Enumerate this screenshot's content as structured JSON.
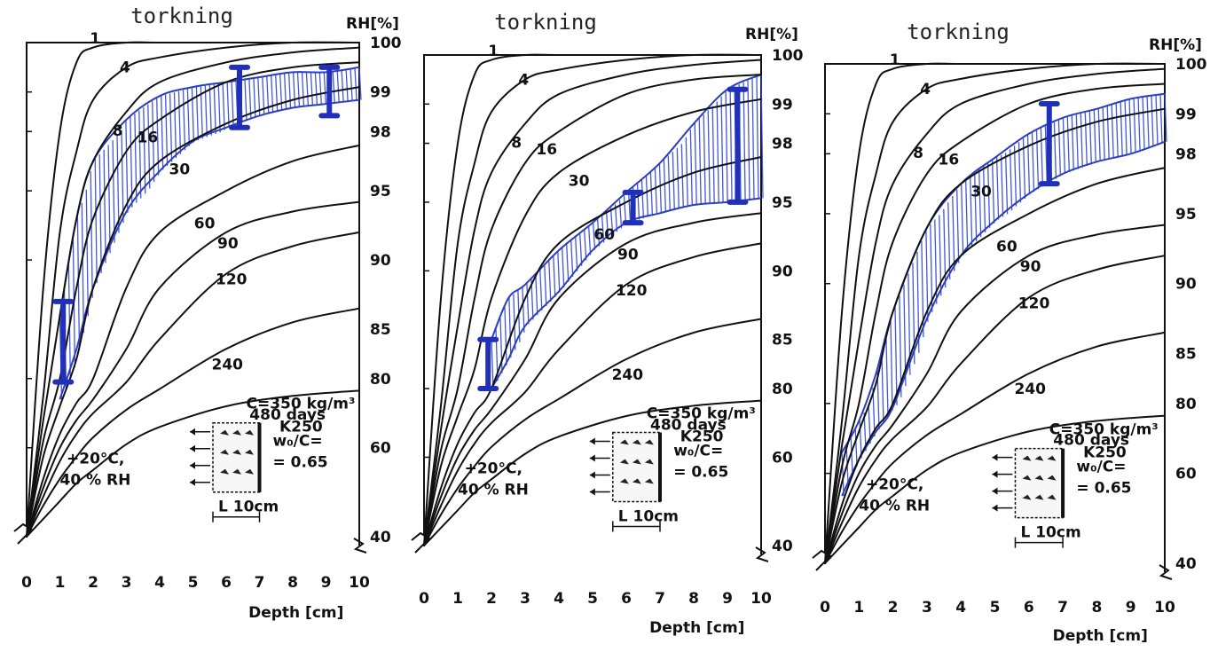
{
  "chart_data": [
    {
      "type": "line",
      "title": "torkning",
      "xlabel": "Depth [cm]",
      "ylabel": "RH[%]",
      "x_ticks": [
        "0",
        "1",
        "2",
        "3",
        "4",
        "5",
        "6",
        "7",
        "8",
        "9",
        "10"
      ],
      "y_ticks": [
        "100",
        "99",
        "98",
        "95",
        "90",
        "85",
        "80",
        "60",
        "40"
      ],
      "xlim": [
        0,
        10
      ],
      "series": [
        {
          "label": "1",
          "x": [
            0,
            0.5,
            1,
            1.5,
            2,
            3,
            4,
            6,
            8,
            10
          ],
          "y": [
            40,
            88,
            98,
            99.6,
            99.9,
            100,
            100,
            100,
            100,
            100
          ]
        },
        {
          "label": "4",
          "x": [
            0,
            0.5,
            1,
            1.5,
            2,
            3,
            4,
            6,
            8,
            10
          ],
          "y": [
            40,
            75,
            92,
            97,
            98.8,
            99.5,
            99.7,
            99.9,
            100,
            100
          ]
        },
        {
          "label": "8",
          "x": [
            0,
            0.5,
            1,
            1.5,
            2,
            3,
            4,
            6,
            8,
            10
          ],
          "y": [
            40,
            68,
            86,
            93,
            96.5,
            98.5,
            99.2,
            99.6,
            99.8,
            99.9
          ]
        },
        {
          "label": "16",
          "x": [
            0,
            0.5,
            1,
            1.5,
            2,
            3,
            4,
            6,
            8,
            10
          ],
          "y": [
            40,
            62,
            80,
            88,
            93,
            97,
            98.3,
            99.2,
            99.5,
            99.6
          ]
        },
        {
          "label": "30",
          "x": [
            0,
            0.5,
            1,
            1.5,
            2,
            3,
            4,
            6,
            8,
            10
          ],
          "y": [
            40,
            58,
            72,
            82,
            88,
            94,
            96.5,
            98.2,
            98.8,
            99.1
          ]
        },
        {
          "label": "60",
          "x": [
            0,
            0.5,
            1,
            1.5,
            2,
            3,
            4,
            6,
            8,
            10
          ],
          "y": [
            40,
            53,
            64,
            73,
            80,
            88,
            92,
            95,
            96.5,
            97.3
          ]
        },
        {
          "label": "90",
          "x": [
            0,
            0.5,
            1,
            1.5,
            2,
            3,
            4,
            6,
            8,
            10
          ],
          "y": [
            40,
            51,
            60,
            68,
            74,
            83,
            88,
            92,
            93.5,
            94.2
          ]
        },
        {
          "label": "120",
          "x": [
            0,
            0.5,
            1,
            1.5,
            2,
            3,
            4,
            6,
            8,
            10
          ],
          "y": [
            40,
            49,
            57,
            64,
            70,
            79,
            84,
            89,
            91,
            92
          ]
        },
        {
          "label": "240",
          "x": [
            0,
            0.5,
            1,
            1.5,
            2,
            3,
            4,
            6,
            8,
            10
          ],
          "y": [
            40,
            47,
            53,
            58,
            63,
            71,
            77,
            83,
            85.5,
            86.5
          ]
        },
        {
          "label": "480 days",
          "x": [
            0,
            0.5,
            1,
            1.5,
            2,
            3,
            4,
            6,
            8,
            10
          ],
          "y": [
            40,
            44,
            48,
            52,
            55,
            61,
            66,
            72,
            75,
            76.5
          ]
        }
      ],
      "measured_band": {
        "x": [
          1,
          1.5,
          2,
          3,
          4,
          5,
          6,
          7,
          8,
          9,
          10
        ],
        "y_low": [
          74,
          83,
          88,
          93.5,
          96,
          97.5,
          98.1,
          98.4,
          98.6,
          98.7,
          98.8
        ],
        "y_high": [
          86,
          93,
          96.5,
          98.3,
          98.9,
          99.1,
          99.2,
          99.3,
          99.4,
          99.4,
          99.5
        ]
      },
      "error_bars": [
        {
          "x": 1.1,
          "y_low": 79,
          "y_high": 87
        },
        {
          "x": 6.4,
          "y_low": 98.1,
          "y_high": 99.5
        },
        {
          "x": 9.1,
          "y_low": 98.4,
          "y_high": 99.5
        }
      ],
      "annotations": [
        "C=350 kg/m³",
        "K250",
        "w₀/C=",
        "= 0.65",
        "+20°C,",
        "40 % RH",
        "L 10cm"
      ]
    },
    {
      "type": "line",
      "title": "torkning",
      "xlabel": "Depth [cm]",
      "ylabel": "RH[%]",
      "x_ticks": [
        "0",
        "1",
        "2",
        "3",
        "4",
        "5",
        "6",
        "7",
        "8",
        "9",
        "10"
      ],
      "y_ticks": [
        "100",
        "99",
        "98",
        "95",
        "90",
        "85",
        "80",
        "60",
        "40"
      ],
      "xlim": [
        0,
        10
      ],
      "series": [
        {
          "label": "1",
          "x": [
            0,
            0.5,
            1,
            1.5,
            2,
            3,
            4,
            6,
            8,
            10
          ],
          "y": [
            40,
            88,
            98,
            99.6,
            99.9,
            100,
            100,
            100,
            100,
            100
          ]
        },
        {
          "label": "4",
          "x": [
            0,
            0.5,
            1,
            1.5,
            2,
            3,
            4,
            6,
            8,
            10
          ],
          "y": [
            40,
            75,
            92,
            97,
            98.8,
            99.5,
            99.7,
            99.9,
            100,
            100
          ]
        },
        {
          "label": "8",
          "x": [
            0,
            0.5,
            1,
            1.5,
            2,
            3,
            4,
            6,
            8,
            10
          ],
          "y": [
            40,
            68,
            86,
            93,
            96.5,
            98.5,
            99.2,
            99.6,
            99.8,
            99.9
          ]
        },
        {
          "label": "16",
          "x": [
            0,
            0.5,
            1,
            1.5,
            2,
            3,
            4,
            6,
            8,
            10
          ],
          "y": [
            40,
            62,
            80,
            88,
            93,
            97,
            98.3,
            99.2,
            99.5,
            99.6
          ]
        },
        {
          "label": "30",
          "x": [
            0,
            0.5,
            1,
            1.5,
            2,
            3,
            4,
            6,
            8,
            10
          ],
          "y": [
            40,
            58,
            72,
            82,
            88,
            94,
            96.5,
            98.2,
            98.8,
            99.1
          ]
        },
        {
          "label": "60",
          "x": [
            0,
            0.5,
            1,
            1.5,
            2,
            3,
            4,
            6,
            8,
            10
          ],
          "y": [
            40,
            53,
            64,
            73,
            80,
            88,
            92,
            95,
            96.5,
            97.3
          ]
        },
        {
          "label": "90",
          "x": [
            0,
            0.5,
            1,
            1.5,
            2,
            3,
            4,
            6,
            8,
            10
          ],
          "y": [
            40,
            51,
            60,
            68,
            74,
            83,
            88,
            92,
            93.5,
            94.2
          ]
        },
        {
          "label": "120",
          "x": [
            0,
            0.5,
            1,
            1.5,
            2,
            3,
            4,
            6,
            8,
            10
          ],
          "y": [
            40,
            49,
            57,
            64,
            70,
            79,
            84,
            89,
            91,
            92
          ]
        },
        {
          "label": "240",
          "x": [
            0,
            0.5,
            1,
            1.5,
            2,
            3,
            4,
            6,
            8,
            10
          ],
          "y": [
            40,
            47,
            53,
            58,
            63,
            71,
            77,
            83,
            85.5,
            86.5
          ]
        },
        {
          "label": "480 days",
          "x": [
            0,
            0.5,
            1,
            1.5,
            2,
            3,
            4,
            6,
            8,
            10
          ],
          "y": [
            40,
            44,
            48,
            52,
            55,
            61,
            66,
            72,
            75,
            76.5
          ]
        }
      ],
      "measured_band": {
        "x": [
          2,
          2.5,
          3,
          4,
          5,
          6,
          7,
          8,
          9,
          10
        ],
        "y_low": [
          80,
          83,
          86,
          88.5,
          91.5,
          93.5,
          94.2,
          94.8,
          95,
          95.2
        ],
        "y_high": [
          85,
          88,
          89,
          91.5,
          93.5,
          95.5,
          97,
          98.5,
          99.3,
          99.6
        ]
      },
      "error_bars": [
        {
          "x": 1.9,
          "y_low": 80,
          "y_high": 85
        },
        {
          "x": 6.2,
          "y_low": 93.5,
          "y_high": 95.5
        },
        {
          "x": 9.3,
          "y_low": 95,
          "y_high": 99.3
        }
      ],
      "annotations": [
        "C=350 kg/m³",
        "K250",
        "w₀/C=",
        "= 0.65",
        "+20°C,",
        "40 % RH",
        "L 10cm"
      ]
    },
    {
      "type": "line",
      "title": "torkning",
      "xlabel": "Depth [cm]",
      "ylabel": "RH[%]",
      "x_ticks": [
        "0",
        "1",
        "2",
        "3",
        "4",
        "5",
        "6",
        "7",
        "8",
        "9",
        "10"
      ],
      "y_ticks": [
        "100",
        "99",
        "98",
        "95",
        "90",
        "85",
        "80",
        "60",
        "40"
      ],
      "xlim": [
        0,
        10
      ],
      "series": [
        {
          "label": "1",
          "x": [
            0,
            0.5,
            1,
            1.5,
            2,
            3,
            4,
            6,
            8,
            10
          ],
          "y": [
            40,
            88,
            98,
            99.6,
            99.9,
            100,
            100,
            100,
            100,
            100
          ]
        },
        {
          "label": "4",
          "x": [
            0,
            0.5,
            1,
            1.5,
            2,
            3,
            4,
            6,
            8,
            10
          ],
          "y": [
            40,
            75,
            92,
            97,
            98.8,
            99.5,
            99.7,
            99.9,
            100,
            100
          ]
        },
        {
          "label": "8",
          "x": [
            0,
            0.5,
            1,
            1.5,
            2,
            3,
            4,
            6,
            8,
            10
          ],
          "y": [
            40,
            68,
            86,
            93,
            96.5,
            98.5,
            99.2,
            99.6,
            99.8,
            99.9
          ]
        },
        {
          "label": "16",
          "x": [
            0,
            0.5,
            1,
            1.5,
            2,
            3,
            4,
            6,
            8,
            10
          ],
          "y": [
            40,
            62,
            80,
            88,
            93,
            97,
            98.3,
            99.2,
            99.5,
            99.6
          ]
        },
        {
          "label": "30",
          "x": [
            0,
            0.5,
            1,
            1.5,
            2,
            3,
            4,
            6,
            8,
            10
          ],
          "y": [
            40,
            58,
            72,
            82,
            88,
            94,
            96.5,
            98.2,
            98.8,
            99.1
          ]
        },
        {
          "label": "60",
          "x": [
            0,
            0.5,
            1,
            1.5,
            2,
            3,
            4,
            6,
            8,
            10
          ],
          "y": [
            40,
            53,
            64,
            73,
            80,
            88,
            92,
            95,
            96.5,
            97.3
          ]
        },
        {
          "label": "90",
          "x": [
            0,
            0.5,
            1,
            1.5,
            2,
            3,
            4,
            6,
            8,
            10
          ],
          "y": [
            40,
            51,
            60,
            68,
            74,
            83,
            88,
            92,
            93.5,
            94.2
          ]
        },
        {
          "label": "120",
          "x": [
            0,
            0.5,
            1,
            1.5,
            2,
            3,
            4,
            6,
            8,
            10
          ],
          "y": [
            40,
            49,
            57,
            64,
            70,
            79,
            84,
            89,
            91,
            92
          ]
        },
        {
          "label": "240",
          "x": [
            0,
            0.5,
            1,
            1.5,
            2,
            3,
            4,
            6,
            8,
            10
          ],
          "y": [
            40,
            47,
            53,
            58,
            63,
            71,
            77,
            83,
            85.5,
            86.5
          ]
        },
        {
          "label": "480 days",
          "x": [
            0,
            0.5,
            1,
            1.5,
            2,
            3,
            4,
            6,
            8,
            10
          ],
          "y": [
            40,
            44,
            48,
            52,
            55,
            61,
            66,
            72,
            75,
            76.5
          ]
        }
      ],
      "measured_band": {
        "x": [
          0.5,
          1,
          1.5,
          2,
          3,
          4,
          5,
          6,
          7,
          8,
          9,
          10
        ],
        "y_low": [
          55,
          64,
          72,
          79,
          87.5,
          92,
          94.5,
          96,
          97,
          97.6,
          98,
          98.3
        ],
        "y_high": [
          66,
          75,
          83,
          88,
          94,
          96.5,
          97.8,
          98.5,
          98.9,
          99.1,
          99.3,
          99.4
        ]
      },
      "error_bars": [
        {
          "x": 6.6,
          "y_low": 96.5,
          "y_high": 99.2
        }
      ],
      "annotations": [
        "C=350 kg/m³",
        "K250",
        "w₀/C=",
        "= 0.65",
        "+20°C,",
        "40 % RH",
        "L 10cm"
      ]
    }
  ]
}
